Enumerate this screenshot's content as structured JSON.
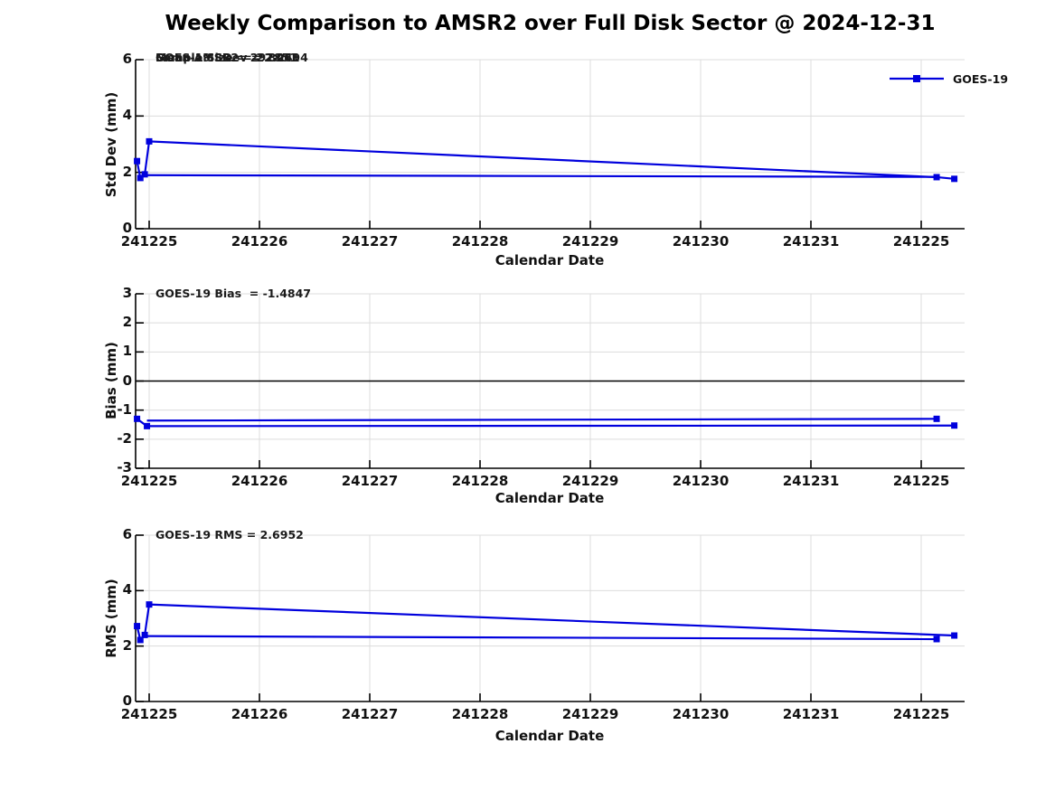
{
  "title": "Weekly Comparison to AMSR2 over Full Disk Sector @ 2024-12-31",
  "legend": {
    "label": "GOES-19"
  },
  "colors": {
    "series": "#0000dd",
    "grid": "#dcdcdc",
    "axis": "#000000",
    "zero_line": "#000000",
    "text": "#111111"
  },
  "x_units_note": "x is days after first tick; tick i sits at day i",
  "chart_data": [
    {
      "type": "line",
      "panel": "stddev",
      "ylabel": "Std Dev (mm)",
      "xlabel": "Calendar Date",
      "ylim": [
        0,
        6
      ],
      "yticks": [
        6,
        4,
        2,
        0
      ],
      "xticklabels": [
        "241225",
        "241226",
        "241227",
        "241228",
        "241229",
        "241230",
        "241231",
        "241225"
      ],
      "grid": true,
      "annotations_overlapping": [
        "GOES-19 SDev = 2.2494",
        "Sample Size = 292851",
        "Mean AMSR2 = 2.8061"
      ],
      "series": [
        {
          "name": "GOES-19",
          "segments": [
            {
              "points": [
                [
                  -0.11,
                  2.4
                ],
                [
                  -0.08,
                  1.8
                ],
                [
                  -0.04,
                  1.93
                ],
                [
                  0.0,
                  3.1
                ],
                [
                  7.14,
                  1.83
                ],
                [
                  7.3,
                  1.77
                ]
              ],
              "markers": "all"
            },
            {
              "points": [
                [
                  -0.04,
                  1.9
                ],
                [
                  7.14,
                  1.84
                ]
              ],
              "markers": "none"
            }
          ]
        }
      ]
    },
    {
      "type": "line",
      "panel": "bias",
      "ylabel": "Bias (mm)",
      "xlabel": "Calendar Date",
      "ylim": [
        -3,
        3
      ],
      "yticks": [
        3,
        2,
        1,
        0,
        -1,
        -2,
        -3
      ],
      "xticklabels": [
        "241225",
        "241226",
        "241227",
        "241228",
        "241229",
        "241230",
        "241231",
        "241225"
      ],
      "grid": true,
      "zero_line": true,
      "annotation": "GOES-19 Bias  = -1.4847",
      "series": [
        {
          "name": "GOES-19",
          "segments": [
            {
              "points": [
                [
                  -0.11,
                  -1.3
                ],
                [
                  -0.02,
                  -1.55
                ],
                [
                  7.3,
                  -1.53
                ]
              ],
              "markers": "all"
            },
            {
              "points": [
                [
                  -0.02,
                  -1.36
                ],
                [
                  7.14,
                  -1.3
                ]
              ],
              "markers": "last"
            }
          ]
        }
      ]
    },
    {
      "type": "line",
      "panel": "rms",
      "ylabel": "RMS (mm)",
      "xlabel": "Calendar Date",
      "ylim": [
        0,
        6
      ],
      "yticks": [
        6,
        4,
        2,
        0
      ],
      "xticklabels": [
        "241225",
        "241226",
        "241227",
        "241228",
        "241229",
        "241230",
        "241231",
        "241225"
      ],
      "grid": true,
      "annotation": "GOES-19 RMS = 2.6952",
      "series": [
        {
          "name": "GOES-19",
          "segments": [
            {
              "points": [
                [
                  -0.11,
                  2.72
                ],
                [
                  -0.08,
                  2.22
                ],
                [
                  -0.04,
                  2.4
                ],
                [
                  0.0,
                  3.5
                ],
                [
                  7.3,
                  2.38
                ]
              ],
              "markers": "all"
            },
            {
              "points": [
                [
                  -0.04,
                  2.36
                ],
                [
                  7.14,
                  2.25
                ]
              ],
              "markers": "last"
            }
          ]
        }
      ]
    }
  ]
}
